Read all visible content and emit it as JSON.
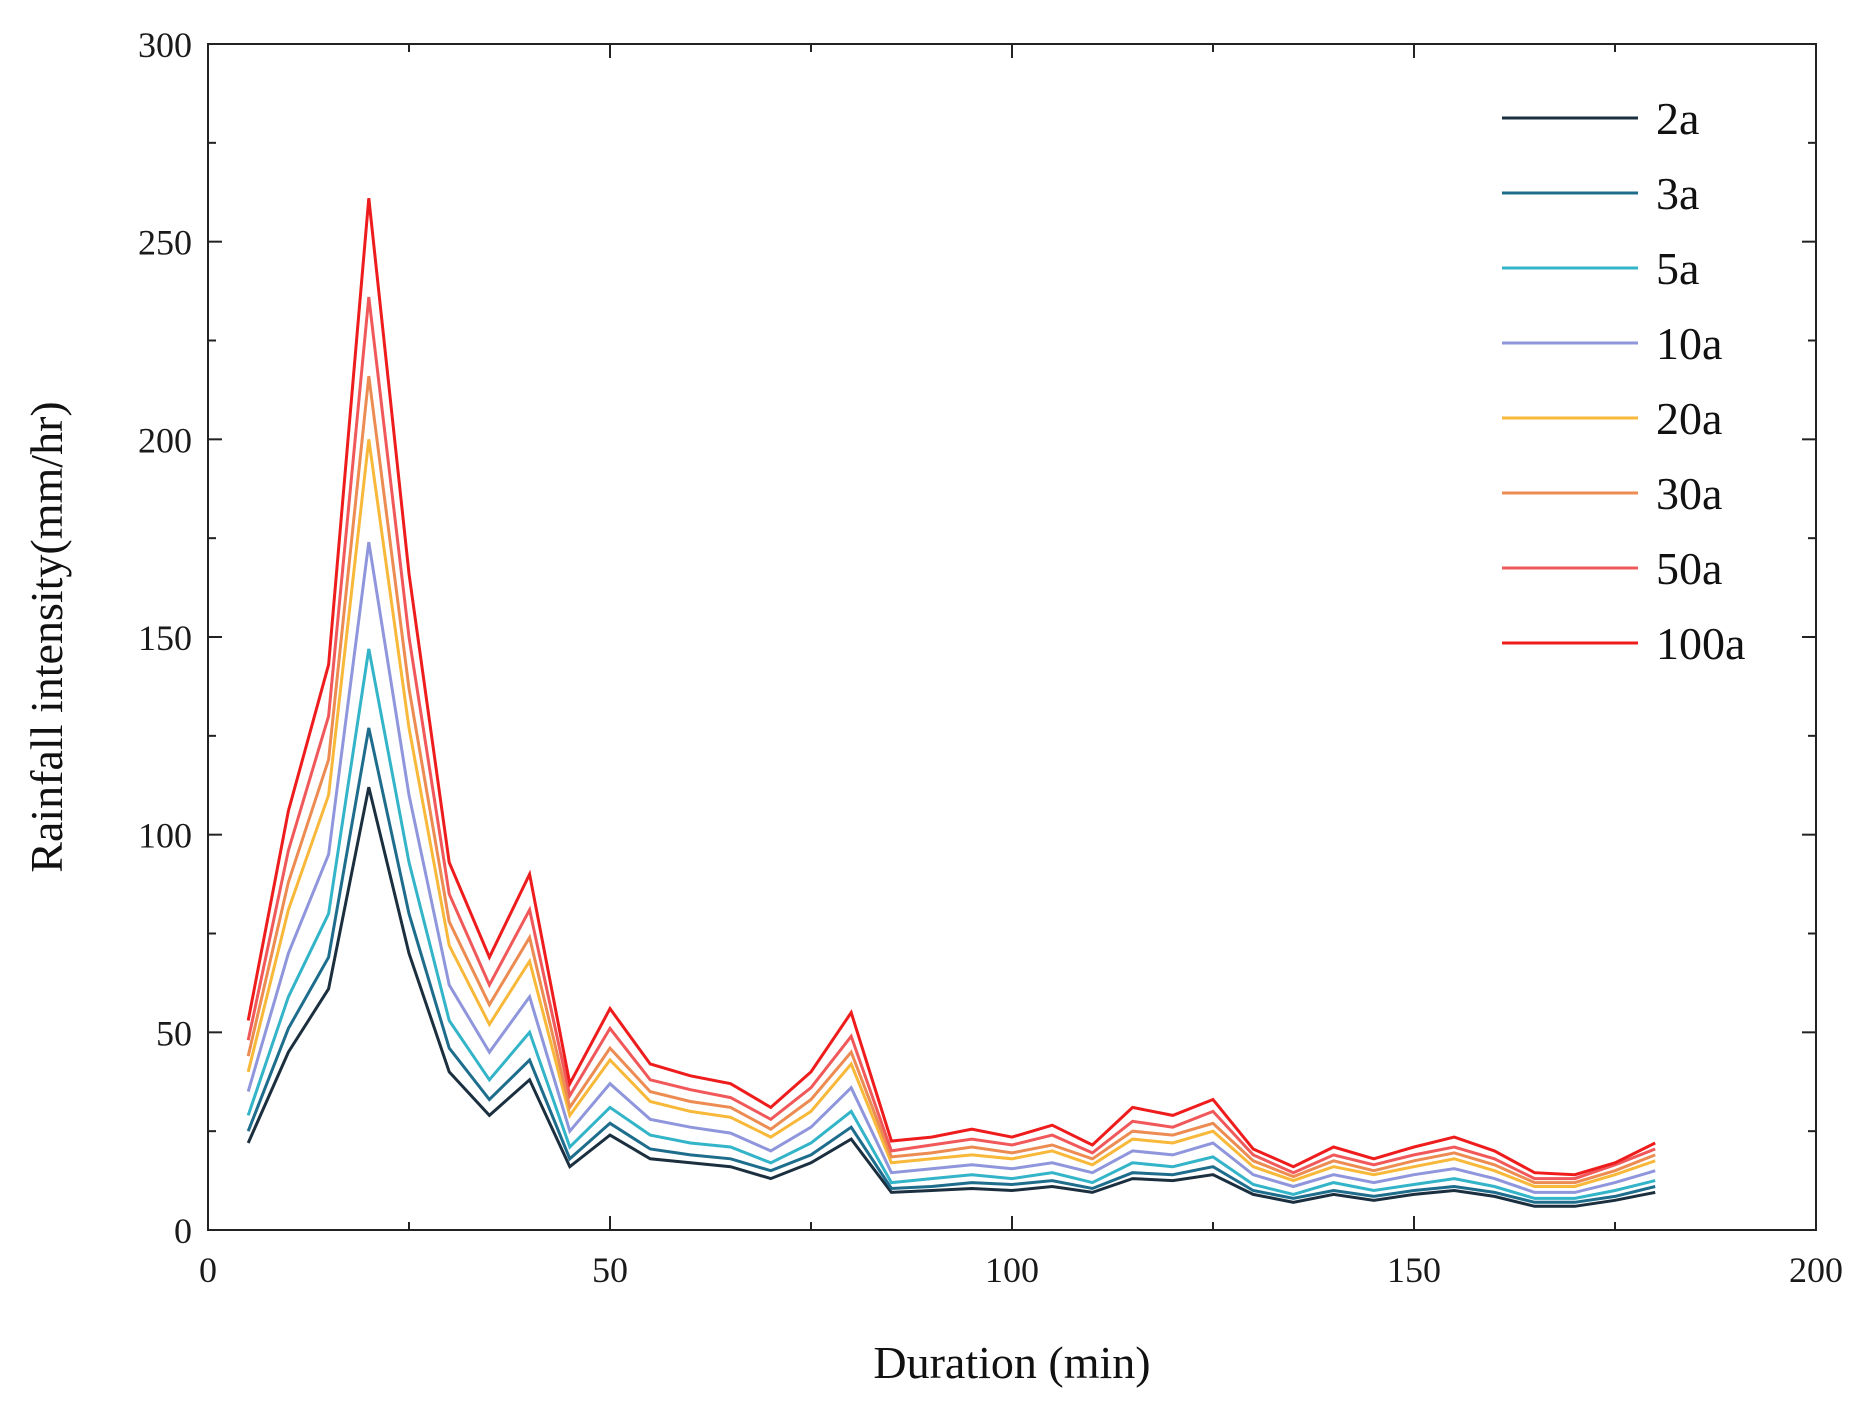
{
  "chart_data": {
    "type": "line",
    "xlabel": "Duration (min)",
    "ylabel": "Rainfall intensity(mm/hr)",
    "xlim": [
      0,
      200
    ],
    "ylim": [
      0,
      300
    ],
    "xticks": [
      "0",
      "50",
      "100",
      "150",
      "200"
    ],
    "yticks": [
      "0",
      "50",
      "100",
      "150",
      "200",
      "250",
      "300"
    ],
    "grid": false,
    "legend_position": "top-right",
    "x": [
      5,
      10,
      15,
      20,
      25,
      30,
      35,
      40,
      45,
      50,
      55,
      60,
      65,
      70,
      75,
      80,
      85,
      90,
      95,
      100,
      105,
      110,
      115,
      120,
      125,
      130,
      135,
      140,
      145,
      150,
      155,
      160,
      165,
      170,
      175,
      180
    ],
    "series": [
      {
        "name": "2a",
        "color": "#1b2f3f",
        "values": [
          22,
          45,
          61,
          112,
          70,
          40,
          29,
          38,
          16,
          24,
          18,
          17,
          16,
          13,
          17,
          23,
          9.5,
          10,
          10.5,
          10,
          11,
          9.5,
          13,
          12.5,
          14,
          9,
          7,
          9,
          7.5,
          9,
          10,
          8.5,
          6,
          6,
          7.5,
          9.5
        ]
      },
      {
        "name": "3a",
        "color": "#1e6d8c",
        "values": [
          25,
          51,
          69,
          127,
          80,
          46,
          33,
          43,
          18,
          27,
          20.5,
          19,
          18,
          15,
          19,
          26,
          10.5,
          11,
          12,
          11.5,
          12.5,
          10.5,
          14.5,
          14,
          16,
          10,
          8,
          10,
          8.5,
          10,
          11,
          9.5,
          7,
          7,
          8.5,
          11
        ]
      },
      {
        "name": "5a",
        "color": "#33b4c8",
        "values": [
          29,
          59,
          80,
          147,
          93,
          53,
          38,
          50,
          21,
          31,
          24,
          22,
          21,
          17,
          22,
          30,
          12,
          13,
          14,
          13,
          14.5,
          12,
          17,
          16,
          18.5,
          11.5,
          9,
          12,
          10,
          11.5,
          13,
          11,
          8,
          8,
          10,
          12.5
        ]
      },
      {
        "name": "10a",
        "color": "#8f96dc",
        "values": [
          35,
          70,
          95,
          174,
          110,
          62,
          45,
          59,
          25,
          37,
          28,
          26,
          24.5,
          20,
          26,
          36,
          14.5,
          15.5,
          16.5,
          15.5,
          17,
          14.5,
          20,
          19,
          22,
          14,
          11,
          14,
          12,
          14,
          15.5,
          13,
          9.5,
          9.5,
          12,
          15
        ]
      },
      {
        "name": "20a",
        "color": "#f8b83a",
        "values": [
          40,
          81,
          110,
          200,
          127,
          72,
          52,
          68,
          29,
          43,
          32.5,
          30,
          28.5,
          23.5,
          30,
          42,
          17,
          18,
          19,
          18,
          20,
          16.5,
          23,
          22,
          25,
          16,
          12.5,
          16,
          14,
          16,
          18,
          15,
          11,
          11,
          14,
          17.5
        ]
      },
      {
        "name": "30a",
        "color": "#ec8c52",
        "values": [
          44,
          88,
          119,
          216,
          137,
          78,
          57,
          74,
          31,
          46,
          35,
          32.5,
          31,
          25.5,
          33,
          45,
          18.5,
          19.5,
          21,
          19.5,
          21.5,
          18,
          25,
          24,
          27,
          17.5,
          13.5,
          17.5,
          15,
          17.5,
          19.5,
          16.5,
          12,
          12,
          15,
          19
        ]
      },
      {
        "name": "50a",
        "color": "#f0585a",
        "values": [
          48,
          96,
          130,
          236,
          150,
          85,
          62,
          81,
          34,
          51,
          38,
          35.5,
          33.5,
          28,
          36,
          49,
          20,
          21.5,
          23,
          21.5,
          24,
          19.5,
          27.5,
          26,
          30,
          19,
          14.5,
          19,
          16.5,
          19,
          21,
          18,
          13,
          13,
          16.5,
          20.5
        ]
      },
      {
        "name": "100a",
        "color": "#ee1c1c",
        "values": [
          53,
          106,
          143,
          261,
          166,
          93,
          69,
          90,
          37,
          56,
          42,
          39,
          37,
          31,
          40,
          55,
          22.5,
          23.5,
          25.5,
          23.5,
          26.5,
          21.5,
          31,
          29,
          33,
          20.5,
          16,
          21,
          18,
          21,
          23.5,
          20,
          14.5,
          14,
          17,
          22
        ]
      }
    ]
  }
}
